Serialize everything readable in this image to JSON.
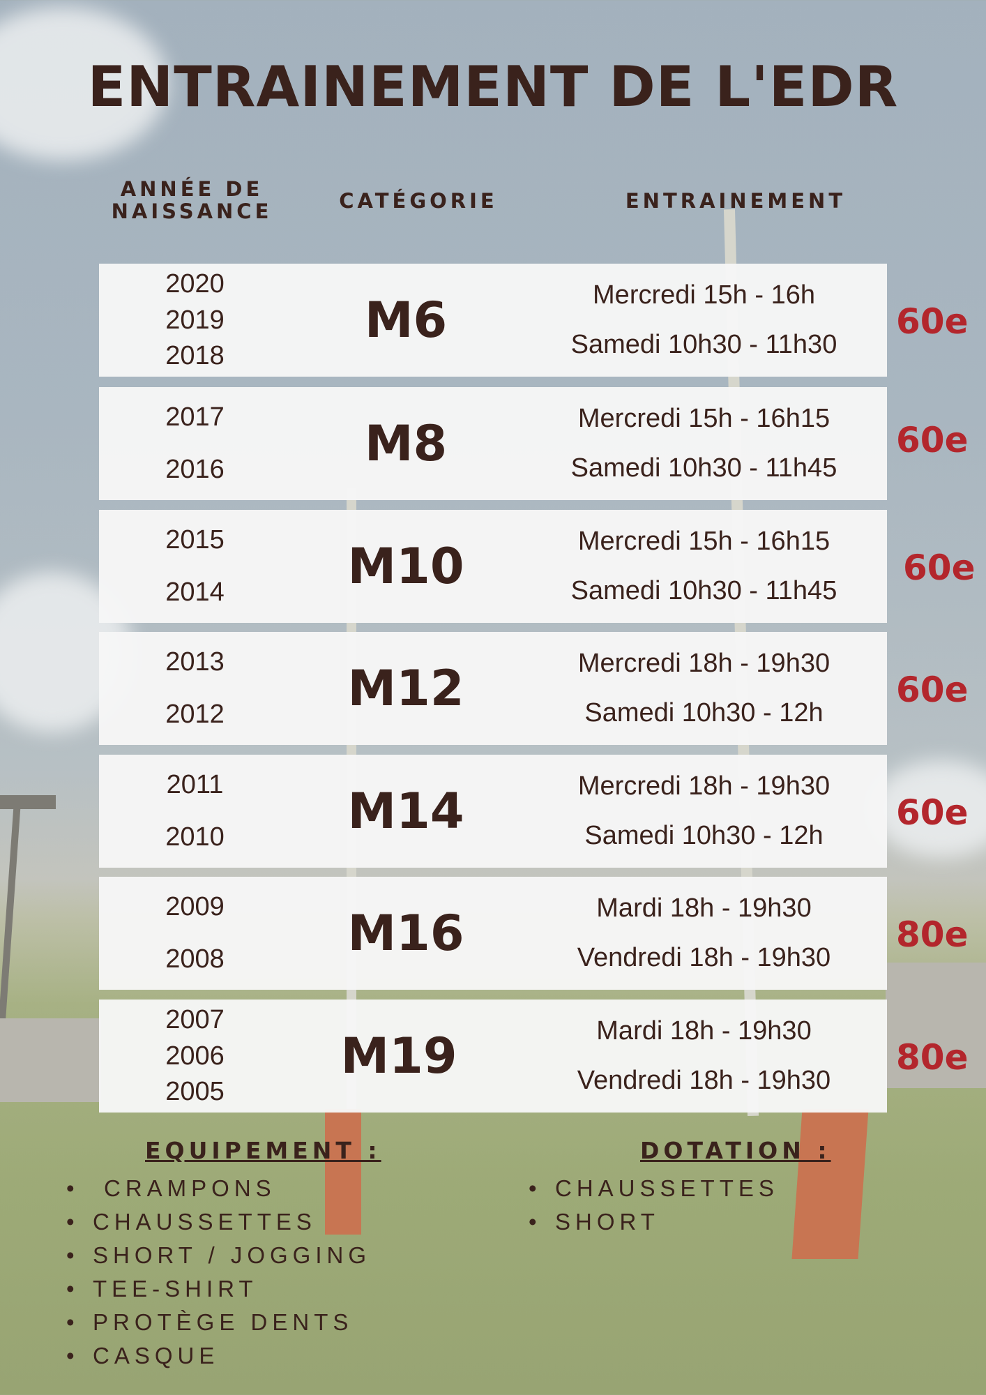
{
  "title": "ENTRAINEMENT DE L'EDR",
  "headers": {
    "year": "ANNÉE DE NAISSANCE",
    "category": "CATÉGORIE",
    "training": "ENTRAINEMENT"
  },
  "rows": [
    {
      "years": [
        "2020",
        "2019",
        "2018"
      ],
      "category": "M6",
      "sessions": [
        "Mercredi 15h - 16h",
        "Samedi 10h30 - 11h30"
      ],
      "price": "60e"
    },
    {
      "years": [
        "2017",
        "2016"
      ],
      "category": "M8",
      "sessions": [
        "Mercredi 15h - 16h15",
        "Samedi 10h30 - 11h45"
      ],
      "price": "60e"
    },
    {
      "years": [
        "2015",
        "2014"
      ],
      "category": "M10",
      "sessions": [
        "Mercredi 15h - 16h15",
        "Samedi 10h30 - 11h45"
      ],
      "price": "60e"
    },
    {
      "years": [
        "2013",
        "2012"
      ],
      "category": "M12",
      "sessions": [
        "Mercredi 18h - 19h30",
        "Samedi 10h30 - 12h"
      ],
      "price": "60e"
    },
    {
      "years": [
        "2011",
        "2010"
      ],
      "category": "M14",
      "sessions": [
        "Mercredi 18h - 19h30",
        "Samedi 10h30 - 12h"
      ],
      "price": "60e"
    },
    {
      "years": [
        "2009",
        "2008"
      ],
      "category": "M16",
      "sessions": [
        "Mardi 18h - 19h30",
        "Vendredi 18h - 19h30"
      ],
      "price": "80e"
    },
    {
      "years": [
        "2007",
        "2006",
        "2005"
      ],
      "category": "M19",
      "sessions": [
        "Mardi 18h - 19h30",
        "Vendredi 18h - 19h30"
      ],
      "price": "80e"
    }
  ],
  "equipment": {
    "title": "EQUIPEMENT :",
    "items": [
      "CRAMPONS",
      "CHAUSSETTES",
      "SHORT / JOGGING",
      "TEE-SHIRT",
      "PROTÈGE DENTS",
      "CASQUE"
    ]
  },
  "dotation": {
    "title": "DOTATION :",
    "items": [
      "CHAUSSETTES",
      "SHORT"
    ]
  },
  "colors": {
    "text": "#3a221c",
    "price": "#b3262c",
    "row_background": "#f6f6f6"
  }
}
